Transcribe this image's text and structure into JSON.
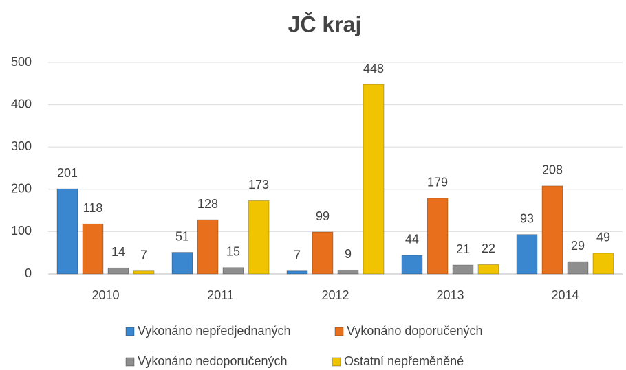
{
  "chart_data": {
    "type": "bar",
    "title": "JČ kraj",
    "categories": [
      "2010",
      "2011",
      "2012",
      "2013",
      "2014"
    ],
    "series": [
      {
        "name": "Vykonáno nepředjednaných",
        "color": "#3a87d0",
        "values": [
          201,
          51,
          7,
          44,
          93
        ]
      },
      {
        "name": "Vykonáno doporučených",
        "color": "#e8701c",
        "values": [
          118,
          128,
          99,
          179,
          208
        ]
      },
      {
        "name": "Vykonáno nedoporučených",
        "color": "#8e8e8e",
        "values": [
          14,
          15,
          9,
          21,
          29
        ]
      },
      {
        "name": "Ostatní nepřeměněné",
        "color": "#f0c400",
        "values": [
          7,
          173,
          448,
          22,
          49
        ]
      }
    ],
    "ylim": [
      0,
      500
    ],
    "yticks": [
      0,
      100,
      200,
      300,
      400,
      500
    ],
    "grid": true,
    "legend": "bottom"
  }
}
